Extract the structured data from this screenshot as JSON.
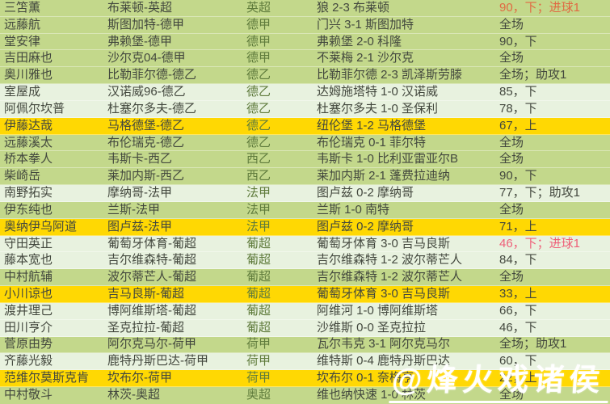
{
  "watermark": {
    "text": "@烽火戏诸侯"
  },
  "row_colors": {
    "green": "#c3d88b",
    "light": "#e8f2df",
    "yellow": "#ffd803"
  },
  "status_colors": {
    "default": "#43483e",
    "goal_orange": "#e06a43",
    "goal_pink": "#ee5f78"
  },
  "chart_data": {
    "type": "table",
    "columns": [
      "player",
      "club",
      "league",
      "match",
      "status"
    ],
    "rows": [
      {
        "player": "三笘薫",
        "club": "布莱顿-英超",
        "league": "英超",
        "match": "狼 2-3 布莱顿",
        "status": "90，下；进球1",
        "bg": "green",
        "status_color": "#e06a43"
      },
      {
        "player": "远藤航",
        "club": "斯图加特-德甲",
        "league": "德甲",
        "match": "门兴 3-1 斯图加特",
        "status": "全场",
        "bg": "green"
      },
      {
        "player": "堂安律",
        "club": "弗赖堡-德甲",
        "league": "德甲",
        "match": "弗赖堡 2-0 科隆",
        "status": "90，下",
        "bg": "green"
      },
      {
        "player": "吉田麻也",
        "club": "沙尔克04-德甲",
        "league": "德甲",
        "match": "不莱梅 2-1 沙尔克",
        "status": "全场",
        "bg": "green"
      },
      {
        "player": "奥川雅也",
        "club": "比勒菲尔德-德乙",
        "league": "德乙",
        "match": "比勒菲尔德 2-3 凯泽斯劳滕",
        "status": "全场；助攻1",
        "bg": "green"
      },
      {
        "player": "室屋成",
        "club": "汉诺威96-德乙",
        "league": "德乙",
        "match": "达姆施塔特 1-0 汉诺威",
        "status": "85，下",
        "bg": "light"
      },
      {
        "player": "阿佩尔坎普",
        "club": "杜塞尔多夫-德乙",
        "league": "德乙",
        "match": "杜塞尔多夫 1-0 圣保利",
        "status": "78，下",
        "bg": "light"
      },
      {
        "player": "伊藤达哉",
        "club": "马格德堡-德乙",
        "league": "德乙",
        "match": "纽伦堡 1-2 马格德堡",
        "status": "67，上",
        "bg": "yellow"
      },
      {
        "player": "远藤溪太",
        "club": "布伦瑞克-德乙",
        "league": "德乙",
        "match": "布伦瑞克 0-1 菲尔特",
        "status": "全场",
        "bg": "green"
      },
      {
        "player": "桥本拳人",
        "club": "韦斯卡-西乙",
        "league": "西乙",
        "match": "韦斯卡 1-0 比利亚雷亚尔B",
        "status": "全场",
        "bg": "green"
      },
      {
        "player": "柴崎岳",
        "club": "莱加内斯-西乙",
        "league": "西乙",
        "match": "莱加内斯 2-1 蓬费拉迪纳",
        "status": "90，下",
        "bg": "green"
      },
      {
        "player": "南野拓实",
        "club": "摩纳哥-法甲",
        "league": "法甲",
        "match": "图卢兹 0-2 摩纳哥",
        "status": "77，下；助攻1",
        "bg": "light"
      },
      {
        "player": "伊东纯也",
        "club": "兰斯-法甲",
        "league": "法甲",
        "match": "兰斯 1-0 南特",
        "status": "全场",
        "bg": "green"
      },
      {
        "player": "奥纳伊乌阿道",
        "club": "图卢兹-法甲",
        "league": "法甲",
        "match": "图卢兹 0-2 摩纳哥",
        "status": "71，上",
        "bg": "yellow"
      },
      {
        "player": "守田英正",
        "club": "葡萄牙体育-葡超",
        "league": "葡超",
        "match": "葡萄牙体育 3-0 吉马良斯",
        "status": "46，下；进球1",
        "bg": "light",
        "status_color": "#ee5f78"
      },
      {
        "player": "藤本宽也",
        "club": "吉尔维森特-葡超",
        "league": "葡超",
        "match": "吉尔维森特 1-2 波尔蒂芒人",
        "status": "84，下",
        "bg": "light"
      },
      {
        "player": "中村航辅",
        "club": "波尔蒂芒人-葡超",
        "league": "葡超",
        "match": "吉尔维森特 1-2 波尔蒂芒人",
        "status": "全场",
        "bg": "green"
      },
      {
        "player": "小川谅也",
        "club": "吉马良斯-葡超",
        "league": "葡超",
        "match": "葡萄牙体育 3-0 吉马良斯",
        "status": "33，上",
        "bg": "yellow"
      },
      {
        "player": "渡井理己",
        "club": "博阿维斯塔-葡超",
        "league": "葡超",
        "match": "阿维河 1-0 博阿维斯塔",
        "status": "66，下",
        "bg": "light"
      },
      {
        "player": "田川亨介",
        "club": "圣克拉拉-葡超",
        "league": "葡超",
        "match": "沙维斯 0-0 圣克拉拉",
        "status": "46，下",
        "bg": "light"
      },
      {
        "player": "菅原由势",
        "club": "阿尔克马尔-荷甲",
        "league": "荷甲",
        "match": "瓦尔韦克 3-1 阿尔克马尔",
        "status": "全场；助攻1",
        "bg": "green"
      },
      {
        "player": "齐藤光毅",
        "club": "鹿特丹斯巴达-荷甲",
        "league": "荷甲",
        "match": "维特斯 0-4 鹿特丹斯巴达",
        "status": "60，下",
        "bg": "light"
      },
      {
        "player": "范维尔莫斯克肯",
        "club": "坎布尔-荷甲",
        "league": "荷甲",
        "match": "坎布尔 0-1 奈梅亨",
        "status": "22，上",
        "bg": "yellow"
      },
      {
        "player": "中村敬斗",
        "club": "林茨-奥超",
        "league": "奥超",
        "match": "维也纳快速 1-0 林茨",
        "status": "全场",
        "bg": "green"
      }
    ]
  }
}
